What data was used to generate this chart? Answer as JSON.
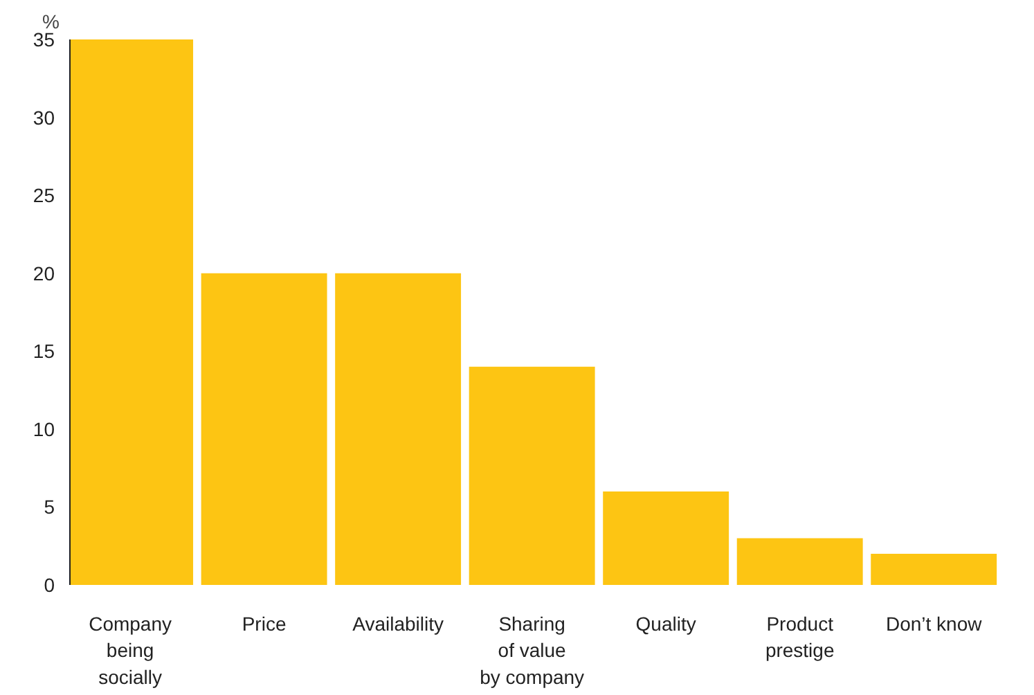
{
  "chart_data": {
    "type": "bar",
    "ylabel": "%",
    "categories": [
      "Company\nbeing\nsocially",
      "Price",
      "Availability",
      "Sharing\nof value\nby company",
      "Quality",
      "Product\nprestige",
      "Don’t know"
    ],
    "values": [
      35,
      20,
      20,
      14,
      6,
      3,
      2
    ],
    "color": "#fdc513",
    "ylim": [
      0,
      35
    ],
    "yticks": [
      0,
      5,
      10,
      15,
      20,
      25,
      30,
      35
    ],
    "grid": false
  }
}
